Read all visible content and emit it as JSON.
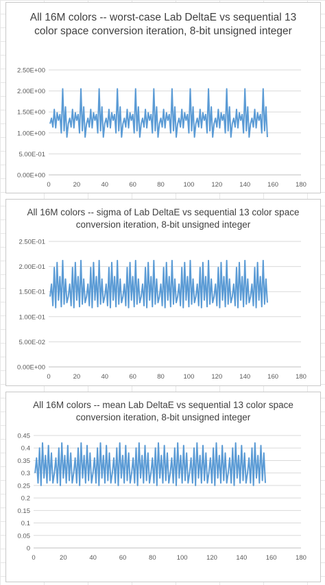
{
  "page": {
    "background": "#ffffff",
    "sheet_gridline_color": "#e6e6e6"
  },
  "chart_data": [
    {
      "type": "line",
      "title": "All 16M colors -- worst-case Lab DeltaE vs sequential 13 color space conversion iteration, 8-bit unsigned integer",
      "xlabel": "",
      "ylabel": "",
      "xlim": [
        0,
        180
      ],
      "ylim": [
        0,
        2.5
      ],
      "x_ticks": [
        0,
        20,
        40,
        60,
        80,
        100,
        120,
        140,
        160,
        180
      ],
      "x_tick_labels": [
        "0",
        "20",
        "40",
        "60",
        "80",
        "100",
        "120",
        "140",
        "160",
        "180"
      ],
      "y_ticks": [
        0,
        0.5,
        1.0,
        1.5,
        2.0,
        2.5
      ],
      "y_tick_labels": [
        "0.00E+00",
        "5.00E-01",
        "1.00E+00",
        "1.50E+00",
        "2.00E+00",
        "2.50E+00"
      ],
      "grid": "horizontal",
      "legend": "none",
      "series_color": "#5b9bd5",
      "x_start": 1,
      "period_values": [
        1.22,
        1.35,
        1.14,
        1.56,
        1.12,
        1.48,
        1.3,
        1.44,
        1.0,
        2.05,
        1.05,
        1.62,
        0.9
      ],
      "num_points": 156
    },
    {
      "type": "line",
      "title": "All 16M colors -- sigma of Lab DeltaE vs sequential 13 color space conversion iteration, 8-bit unsigned integer",
      "xlabel": "",
      "ylabel": "",
      "xlim": [
        0,
        180
      ],
      "ylim": [
        0,
        0.25
      ],
      "x_ticks": [
        0,
        20,
        40,
        60,
        80,
        100,
        120,
        140,
        160,
        180
      ],
      "x_tick_labels": [
        "0",
        "20",
        "40",
        "60",
        "80",
        "100",
        "120",
        "140",
        "160",
        "180"
      ],
      "y_ticks": [
        0,
        0.05,
        0.1,
        0.15,
        0.2,
        0.25
      ],
      "y_tick_labels": [
        "0.00E+00",
        "5.00E-02",
        "1.00E-01",
        "1.50E-01",
        "2.00E-01",
        "2.50E-01"
      ],
      "grid": "horizontal",
      "legend": "none",
      "series_color": "#5b9bd5",
      "x_start": 1,
      "period_values": [
        0.14,
        0.165,
        0.122,
        0.198,
        0.118,
        0.208,
        0.133,
        0.18,
        0.12,
        0.212,
        0.125,
        0.175,
        0.128
      ],
      "num_points": 156
    },
    {
      "type": "line",
      "title": "All 16M colors -- mean Lab DeltaE vs sequential 13 color space conversion iteration, 8-bit unsigned integer",
      "xlabel": "",
      "ylabel": "",
      "xlim": [
        0,
        180
      ],
      "ylim": [
        0,
        0.45
      ],
      "x_ticks": [
        0,
        20,
        40,
        60,
        80,
        100,
        120,
        140,
        160,
        180
      ],
      "x_tick_labels": [
        "0",
        "20",
        "40",
        "60",
        "80",
        "100",
        "120",
        "140",
        "160",
        "180"
      ],
      "y_ticks": [
        0,
        0.05,
        0.1,
        0.15,
        0.2,
        0.25,
        0.3,
        0.35,
        0.4,
        0.45
      ],
      "y_tick_labels": [
        "0",
        "0.05",
        "0.1",
        "0.15",
        "0.2",
        "0.25",
        "0.3",
        "0.35",
        "0.4",
        "0.45"
      ],
      "grid": "horizontal",
      "legend": "none",
      "series_color": "#5b9bd5",
      "x_start": 1,
      "period_values": [
        0.3,
        0.36,
        0.26,
        0.4,
        0.25,
        0.42,
        0.28,
        0.37,
        0.26,
        0.41,
        0.27,
        0.38,
        0.26
      ],
      "num_points": 156
    }
  ]
}
